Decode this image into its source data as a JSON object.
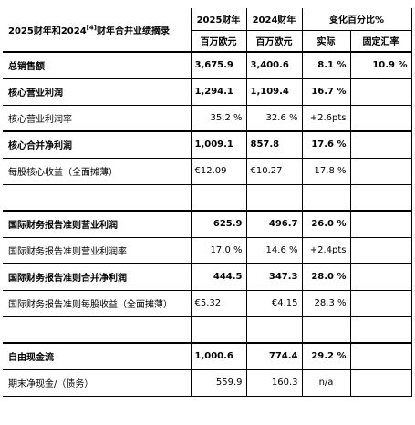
{
  "header": {
    "title_prefix": "2025财年和2024",
    "title_ref": "[4]",
    "title_suffix": "财年合并业绩摘录",
    "col_2025": "2025财年",
    "col_2024": "2024财年",
    "col_change": "变化百分比%",
    "unit_2025": "百万欧元",
    "unit_2024": "百万欧元",
    "col_actual": "实际",
    "col_fx": "固定汇率"
  },
  "rows": [
    {
      "label": "总销售额",
      "v2025": "3,675.9",
      "v2024": "3,400.6",
      "actual": "8.1 %",
      "fx": "10.9 %"
    },
    {
      "label": "核心营业利润",
      "v2025": "1,294.1",
      "v2024": "1,109.4",
      "actual": "16.7 %",
      "fx": ""
    },
    {
      "label": "核心营业利润率",
      "v2025": "35.2 %",
      "v2024": "32.6 %",
      "actual": "+2.6pts",
      "fx": ""
    },
    {
      "label": "核心合并净利润",
      "v2025": "1,009.1",
      "v2024": "857.8",
      "actual": "17.6 %",
      "fx": ""
    },
    {
      "label": "每股核心收益（全面摊薄）",
      "v2025": "€12.09",
      "v2024": "€10.27",
      "actual": "17.8 %",
      "fx": ""
    },
    {
      "label": "国际财务报告准则营业利润",
      "v2025": "625.9",
      "v2024": "496.7",
      "actual": "26.0 %",
      "fx": ""
    },
    {
      "label": "国际财务报告准则营业利润率",
      "v2025": "17.0 %",
      "v2024": "14.6 %",
      "actual": "+2.4pts",
      "fx": ""
    },
    {
      "label": "国际财务报告准则合并净利润",
      "v2025": "444.5",
      "v2024": "347.3",
      "actual": "28.0 %",
      "fx": ""
    },
    {
      "label": "国际财务报告准则每股收益（全面摊薄）",
      "v2025": "€5.32",
      "v2024": "€4.15",
      "actual": "28.3 %",
      "fx": ""
    },
    {
      "label": "自由现金流",
      "v2025": "1,000.6",
      "v2024": "774.4",
      "actual": "29.2 %",
      "fx": ""
    },
    {
      "label": "期末净现金/（债务）",
      "v2025": "559.9",
      "v2024": "160.3",
      "actual": "n/a",
      "fx": ""
    }
  ]
}
